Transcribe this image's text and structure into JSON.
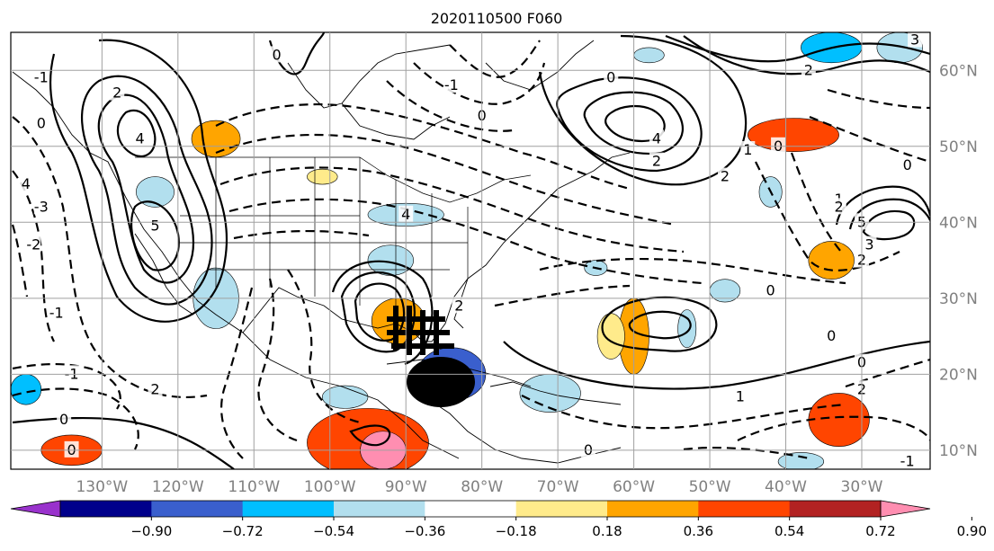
{
  "title": "2020110500 F060",
  "map": {
    "projection": "cylindrical",
    "lon_range": [
      -142,
      -21
    ],
    "lat_range": [
      7.5,
      65
    ],
    "lon_ticks": [
      {
        "lon": -130,
        "label": "130°W"
      },
      {
        "lon": -120,
        "label": "120°W"
      },
      {
        "lon": -110,
        "label": "110°W"
      },
      {
        "lon": -100,
        "label": "100°W"
      },
      {
        "lon": -90,
        "label": "90°W"
      },
      {
        "lon": -80,
        "label": "80°W"
      },
      {
        "lon": -70,
        "label": "70°W"
      },
      {
        "lon": -60,
        "label": "60°W"
      },
      {
        "lon": -50,
        "label": "50°W"
      },
      {
        "lon": -40,
        "label": "40°W"
      },
      {
        "lon": -30,
        "label": "30°W"
      }
    ],
    "lat_ticks": [
      {
        "lat": 60,
        "label": "60°N"
      },
      {
        "lat": 50,
        "label": "50°N"
      },
      {
        "lat": 40,
        "label": "40°N"
      },
      {
        "lat": 30,
        "label": "30°N"
      },
      {
        "lat": 20,
        "label": "20°N"
      },
      {
        "lat": 10,
        "label": "10°N"
      }
    ],
    "grid": true,
    "tick_label_color": "#808080"
  },
  "contour_labels": [
    {
      "text": "0",
      "lon": -107,
      "lat": 62
    },
    {
      "text": "2",
      "lon": -128,
      "lat": 57
    },
    {
      "text": "4",
      "lon": -125,
      "lat": 51
    },
    {
      "text": "5",
      "lon": -123,
      "lat": 39.5
    },
    {
      "text": "-1",
      "lon": -138,
      "lat": 59
    },
    {
      "text": "0",
      "lon": -138,
      "lat": 53
    },
    {
      "text": "4",
      "lon": -140,
      "lat": 45
    },
    {
      "text": "-3",
      "lon": -138,
      "lat": 42
    },
    {
      "text": "-2",
      "lon": -139,
      "lat": 37
    },
    {
      "text": "-1",
      "lon": -136,
      "lat": 28
    },
    {
      "text": "-1",
      "lon": -134,
      "lat": 20
    },
    {
      "text": "0",
      "lon": -135,
      "lat": 14
    },
    {
      "text": "0",
      "lon": -134,
      "lat": 10
    },
    {
      "text": "2",
      "lon": -123,
      "lat": 18
    },
    {
      "text": "-1",
      "lon": -84,
      "lat": 58
    },
    {
      "text": "0",
      "lon": -80,
      "lat": 54
    },
    {
      "text": "0",
      "lon": -63,
      "lat": 59
    },
    {
      "text": "2",
      "lon": -57,
      "lat": 48
    },
    {
      "text": "4",
      "lon": -57,
      "lat": 51
    },
    {
      "text": "3",
      "lon": -23,
      "lat": 64
    },
    {
      "text": "2",
      "lon": -37,
      "lat": 60
    },
    {
      "text": "2",
      "lon": -48,
      "lat": 46
    },
    {
      "text": "1",
      "lon": -45,
      "lat": 49.5
    },
    {
      "text": "0",
      "lon": -41,
      "lat": 50
    },
    {
      "text": "0",
      "lon": -24,
      "lat": 47.5
    },
    {
      "text": "1",
      "lon": -33,
      "lat": 43
    },
    {
      "text": "2",
      "lon": -33,
      "lat": 42
    },
    {
      "text": "5",
      "lon": -30,
      "lat": 40
    },
    {
      "text": "3",
      "lon": -29,
      "lat": 37
    },
    {
      "text": "2",
      "lon": -30,
      "lat": 35
    },
    {
      "text": "4",
      "lon": -90,
      "lat": 41
    },
    {
      "text": "2",
      "lon": -83,
      "lat": 29
    },
    {
      "text": "0",
      "lon": -42,
      "lat": 31
    },
    {
      "text": "0",
      "lon": -34,
      "lat": 25
    },
    {
      "text": "0",
      "lon": -30,
      "lat": 21.5
    },
    {
      "text": "1",
      "lon": -46,
      "lat": 17
    },
    {
      "text": "2",
      "lon": -30,
      "lat": 18
    },
    {
      "text": "-1",
      "lon": -24,
      "lat": 8.5
    },
    {
      "text": "0",
      "lon": -66,
      "lat": 10
    }
  ],
  "shaded_regions": [
    {
      "level": "0.36",
      "lon": -115,
      "lat": 51,
      "rx": 3.2,
      "ry": 2.4
    },
    {
      "level": "0.18",
      "lon": -101,
      "lat": 46,
      "rx": 2,
      "ry": 1
    },
    {
      "level": "-0.18",
      "lon": -123,
      "lat": 44,
      "rx": 2.5,
      "ry": 2
    },
    {
      "level": "-0.18",
      "lon": -90,
      "lat": 41,
      "rx": 5,
      "ry": 1.5
    },
    {
      "level": "-0.18",
      "lon": -115,
      "lat": 30,
      "rx": 3,
      "ry": 4
    },
    {
      "level": "-0.18",
      "lon": -92,
      "lat": 35,
      "rx": 3,
      "ry": 2
    },
    {
      "level": "0.36",
      "lon": -91,
      "lat": 27,
      "rx": 3.5,
      "ry": 3
    },
    {
      "level": "-0.54",
      "lon": -84,
      "lat": 20,
      "rx": 4.5,
      "ry": 3.5
    },
    {
      "level": "-0.18",
      "lon": -71,
      "lat": 17.5,
      "rx": 4,
      "ry": 2.5
    },
    {
      "level": "-0.18",
      "lon": -98,
      "lat": 17,
      "rx": 3,
      "ry": 1.5
    },
    {
      "level": "0.54",
      "lon": -95,
      "lat": 11,
      "rx": 8,
      "ry": 4.5
    },
    {
      "level": "0.90",
      "lon": -93,
      "lat": 10,
      "rx": 3,
      "ry": 2.5
    },
    {
      "level": "0.54",
      "lon": -134,
      "lat": 10,
      "rx": 4,
      "ry": 2
    },
    {
      "level": "-0.36",
      "lon": -140,
      "lat": 18,
      "rx": 2,
      "ry": 2
    },
    {
      "level": "0.36",
      "lon": -60,
      "lat": 25,
      "rx": 2,
      "ry": 5
    },
    {
      "level": "-0.18",
      "lon": -53,
      "lat": 26,
      "rx": 1.2,
      "ry": 2.5
    },
    {
      "level": "-0.18",
      "lon": -65,
      "lat": 34,
      "rx": 1.5,
      "ry": 1
    },
    {
      "level": "-0.18",
      "lon": -48,
      "lat": 31,
      "rx": 2,
      "ry": 1.5
    },
    {
      "level": "0.54",
      "lon": -39,
      "lat": 51.5,
      "rx": 6,
      "ry": 2.2
    },
    {
      "level": "-0.36",
      "lon": -34,
      "lat": 63,
      "rx": 4,
      "ry": 2
    },
    {
      "level": "-0.18",
      "lon": -25,
      "lat": 63,
      "rx": 3,
      "ry": 2
    },
    {
      "level": "-0.18",
      "lon": -58,
      "lat": 62,
      "rx": 2,
      "ry": 1
    },
    {
      "level": "-0.18",
      "lon": -42,
      "lat": 44,
      "rx": 1.5,
      "ry": 2
    },
    {
      "level": "0.36",
      "lon": -34,
      "lat": 35,
      "rx": 3,
      "ry": 2.5
    },
    {
      "level": "0.54",
      "lon": -33,
      "lat": 14,
      "rx": 4,
      "ry": 3.5
    },
    {
      "level": "-0.18",
      "lon": -38,
      "lat": 8.5,
      "rx": 3,
      "ry": 1.2
    },
    {
      "level": "0.18",
      "lon": -63,
      "lat": 25,
      "rx": 1.8,
      "ry": 3
    }
  ],
  "colorbar": {
    "colors": [
      "#9932cc",
      "#00008b",
      "#3a5fcd",
      "#00bfff",
      "#b2dfee",
      "#ffffff",
      "#ffeb8b",
      "#ffa500",
      "#ff4500",
      "#b22222",
      "#ff8eb1"
    ],
    "tick_labels": [
      "−0.90",
      "−0.72",
      "−0.54",
      "−0.36",
      "−0.18",
      "0.18",
      "0.36",
      "0.54",
      "0.72",
      "0.90"
    ]
  }
}
